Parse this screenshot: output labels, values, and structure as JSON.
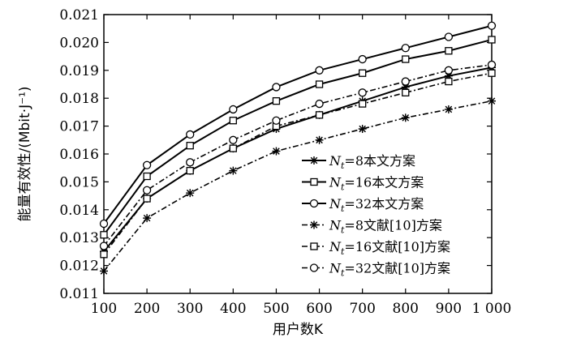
{
  "chart_data": {
    "type": "line",
    "xlabel": "用户数K",
    "ylabel": "能量有效性/(Mbit·J⁻¹)",
    "x": [
      100,
      200,
      300,
      400,
      500,
      600,
      700,
      800,
      900,
      1000
    ],
    "x_tick_labels": [
      "100",
      "200",
      "300",
      "400",
      "500",
      "600",
      "700",
      "800",
      "900",
      "1 000"
    ],
    "xlim": [
      100,
      1000
    ],
    "ylim": [
      0.011,
      0.021
    ],
    "y_ticks": [
      0.011,
      0.012,
      0.013,
      0.014,
      0.015,
      0.016,
      0.017,
      0.018,
      0.019,
      0.02,
      0.021
    ],
    "y_tick_labels": [
      "0.011",
      "0.012",
      "0.013",
      "0.014",
      "0.015",
      "0.016",
      "0.017",
      "0.018",
      "0.019",
      "0.020",
      "0.021"
    ],
    "legend_position": "lower-right",
    "series": [
      {
        "name": "Nt=8本文方案",
        "legend_sym": "N",
        "legend_sub": "t",
        "legend_rest": "=8本文方案",
        "marker": "star",
        "dash": "solid",
        "values": [
          0.0125,
          0.0144,
          0.0154,
          0.0162,
          0.0169,
          0.0174,
          0.0179,
          0.0184,
          0.0188,
          0.0191
        ]
      },
      {
        "name": "Nt=16本文方案",
        "legend_sym": "N",
        "legend_sub": "t",
        "legend_rest": "=16本文方案",
        "marker": "square",
        "dash": "solid",
        "values": [
          0.0131,
          0.0152,
          0.0163,
          0.0172,
          0.0179,
          0.0185,
          0.0189,
          0.0194,
          0.0197,
          0.0201
        ]
      },
      {
        "name": "Nt=32本文方案",
        "legend_sym": "N",
        "legend_sub": "t",
        "legend_rest": "=32本文方案",
        "marker": "circle",
        "dash": "solid",
        "values": [
          0.0135,
          0.0156,
          0.0167,
          0.0176,
          0.0184,
          0.019,
          0.0194,
          0.0198,
          0.0202,
          0.0206
        ]
      },
      {
        "name": "Nt=8文献[10]方案",
        "legend_sym": "N",
        "legend_sub": "t",
        "legend_rest": "=8文献[10]方案",
        "marker": "star",
        "dash": "dashdot",
        "values": [
          0.0118,
          0.0137,
          0.0146,
          0.0154,
          0.0161,
          0.0165,
          0.0169,
          0.0173,
          0.0176,
          0.0179
        ]
      },
      {
        "name": "Nt=16文献[10]方案",
        "legend_sym": "N",
        "legend_sub": "t",
        "legend_rest": "=16文献[10]方案",
        "marker": "square",
        "dash": "dashdot",
        "values": [
          0.0124,
          0.0144,
          0.0154,
          0.0162,
          0.017,
          0.0174,
          0.0178,
          0.0182,
          0.0186,
          0.0189
        ]
      },
      {
        "name": "Nt=32文献[10]方案",
        "legend_sym": "N",
        "legend_sub": "t",
        "legend_rest": "=32文献[10]方案",
        "marker": "circle",
        "dash": "dashdot",
        "values": [
          0.0127,
          0.0147,
          0.0157,
          0.0165,
          0.0172,
          0.0178,
          0.0182,
          0.0186,
          0.019,
          0.0192
        ]
      }
    ]
  }
}
